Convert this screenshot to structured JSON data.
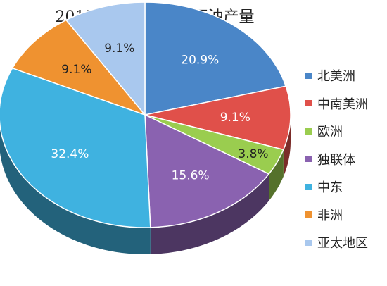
{
  "chart_data": {
    "type": "pie",
    "title": "2015 年世界各地区石油产量",
    "categories": [
      "北美洲",
      "中南美洲",
      "欧洲",
      "独联体",
      "中东",
      "非洲",
      "亚太地区"
    ],
    "values": [
      20.9,
      9.1,
      3.8,
      15.6,
      32.4,
      9.1,
      9.1
    ],
    "data_labels": [
      "20.9%",
      "9.1%",
      "3.8%",
      "15.6%",
      "32.4%",
      "9.1%",
      "9.1%"
    ],
    "colors": [
      "#4a86c8",
      "#e0504a",
      "#9acd4f",
      "#8a62b0",
      "#3fb2e0",
      "#ef9230",
      "#a9c8ee"
    ],
    "legend_position": "right",
    "style": "3d"
  }
}
